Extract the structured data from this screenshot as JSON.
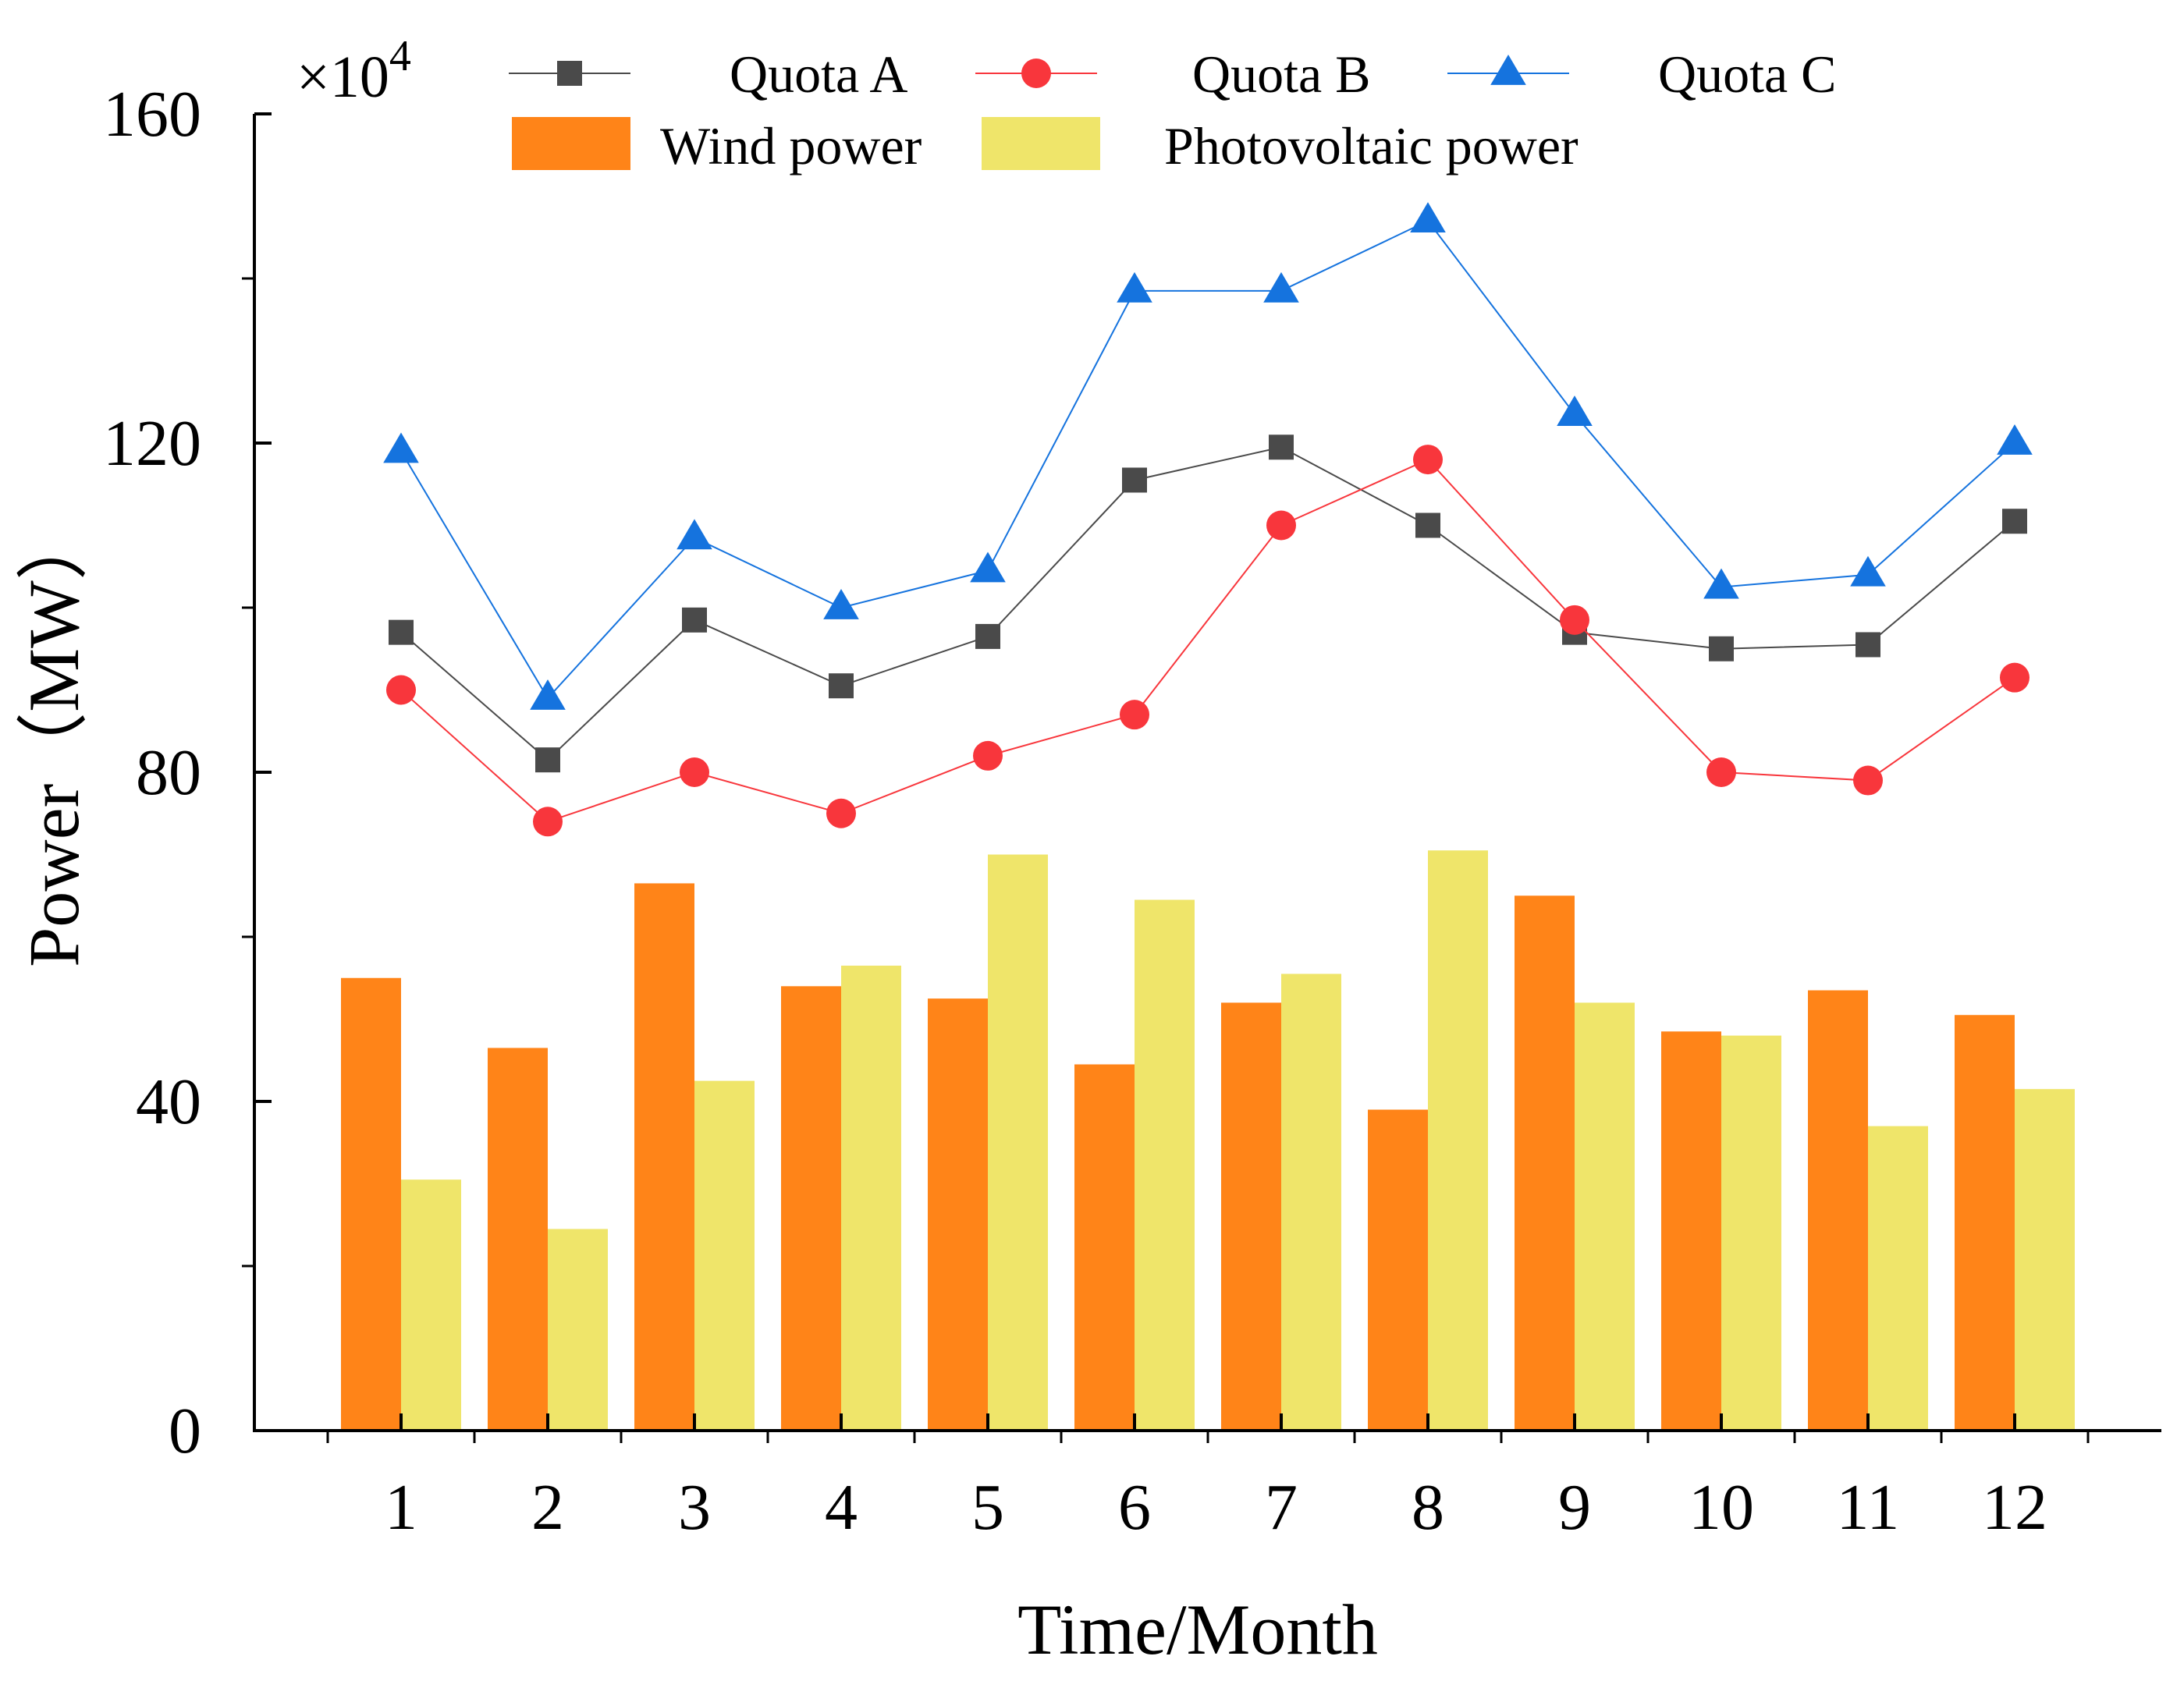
{
  "chart_data": {
    "type": "bar",
    "title": "",
    "xlabel": "Time/Month",
    "ylabel": "Power（MW）",
    "y_multiplier": "×10",
    "y_multiplier_exp": "4",
    "ylim": [
      0,
      160
    ],
    "yticks": [
      "0",
      "40",
      "80",
      "120",
      "160"
    ],
    "categories": [
      "1",
      "2",
      "3",
      "4",
      "5",
      "6",
      "7",
      "8",
      "9",
      "10",
      "11",
      "12"
    ],
    "bar_series": [
      {
        "name": "Wind power",
        "color": "#ff8418",
        "values": [
          55,
          46.5,
          66.5,
          54,
          52.5,
          44.5,
          52,
          39,
          65,
          48.5,
          53.5,
          50.5
        ]
      },
      {
        "name": "Photovoltaic power",
        "color": "#efe56a",
        "values": [
          30.5,
          24.5,
          42.5,
          56.5,
          70,
          64.5,
          55.5,
          70.5,
          52,
          48,
          37,
          41.5
        ]
      }
    ],
    "line_series": [
      {
        "name": "Quota A",
        "color": "#4a4a4a",
        "marker": "square",
        "values": [
          97,
          81.5,
          98.5,
          90.5,
          96.5,
          115.5,
          119.5,
          110,
          97,
          95,
          95.5,
          110.5
        ]
      },
      {
        "name": "Quota B",
        "color": "#f8363c",
        "marker": "circle",
        "values": [
          90,
          74,
          80,
          75,
          82,
          87,
          110,
          118,
          98.5,
          80,
          79,
          91.5
        ]
      },
      {
        "name": "Quota C",
        "color": "#1573de",
        "marker": "triangle",
        "values": [
          119,
          89,
          108.5,
          100,
          104.5,
          138.5,
          138.5,
          147,
          123.5,
          102.5,
          104,
          120
        ]
      }
    ],
    "legend_position": "top",
    "grid": false
  }
}
